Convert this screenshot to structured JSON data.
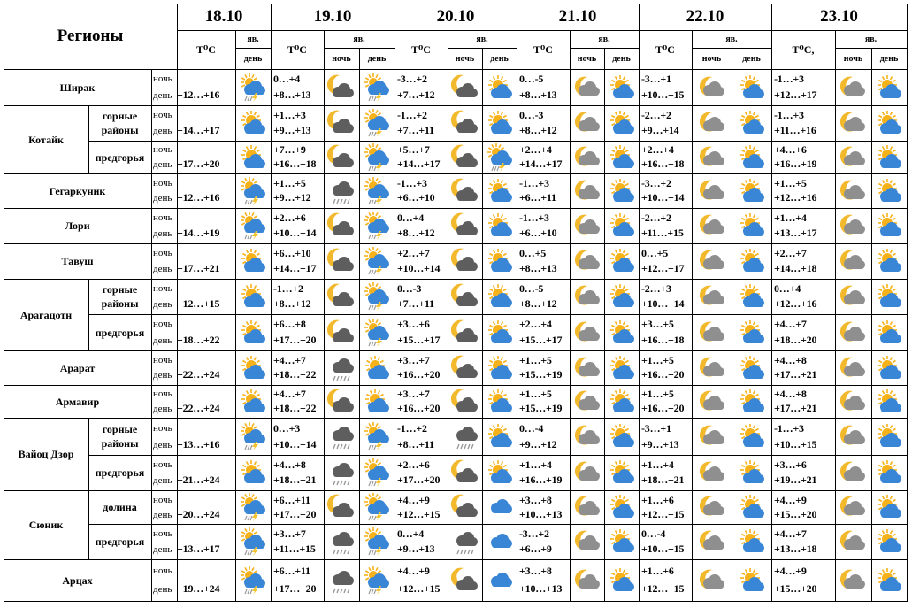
{
  "chart_data": {
    "type": "table",
    "title": "Регионы",
    "header": {
      "temp_label": "T⁰C",
      "temp_label_last": "T⁰C,",
      "phen_label": "яв.",
      "night_label": "ночь",
      "day_label": "день"
    },
    "dates": [
      "18.10",
      "19.10",
      "20.10",
      "21.10",
      "22.10",
      "23.10"
    ],
    "rows": [
      {
        "region": "Ширак",
        "sub": "",
        "t": [
          [
            "",
            "+12…+16"
          ],
          [
            "0…+4",
            "+8…+13"
          ],
          [
            "-3…+2",
            "+7…+12"
          ],
          [
            "0…-5",
            "+8…+13"
          ],
          [
            "-3…+1",
            "+10…+15"
          ],
          [
            "-1…+3",
            "+12…+17"
          ]
        ],
        "icons": [
          [
            "",
            "sun-rain-thunder"
          ],
          [
            "cloud-moon",
            "sun-rain-thunder"
          ],
          [
            "cloud-moon",
            "sun-cloud"
          ],
          [
            "moon",
            "sun-cloud"
          ],
          [
            "moon",
            "sun-cloud"
          ],
          [
            "moon",
            "sun-cloud"
          ]
        ]
      },
      {
        "region": "Котайк",
        "sub": "горные районы",
        "t": [
          [
            "",
            "+14…+17"
          ],
          [
            "+1…+3",
            "+9…+13"
          ],
          [
            "-1…+2",
            "+7…+11"
          ],
          [
            "0…-3",
            "+8…+12"
          ],
          [
            "-2…+2",
            "+9…+14"
          ],
          [
            "-1…+3",
            "+11…+16"
          ]
        ],
        "icons": [
          [
            "",
            "sun-cloud"
          ],
          [
            "cloud-moon",
            "sun-rain-thunder"
          ],
          [
            "cloud-moon",
            "sun-cloud"
          ],
          [
            "moon",
            "sun-cloud"
          ],
          [
            "moon",
            "sun-cloud"
          ],
          [
            "moon",
            "sun-cloud"
          ]
        ]
      },
      {
        "region": "",
        "sub": "предгорья",
        "t": [
          [
            "",
            "+17…+20"
          ],
          [
            "+7…+9",
            "+16…+18"
          ],
          [
            "+5…+7",
            "+14…+17"
          ],
          [
            "+2…+4",
            "+14…+17"
          ],
          [
            "+2…+4",
            "+16…+18"
          ],
          [
            "+4…+6",
            "+16…+19"
          ]
        ],
        "icons": [
          [
            "",
            "sun-cloud"
          ],
          [
            "cloud-moon",
            "sun-rain-thunder"
          ],
          [
            "cloud-moon",
            "sun-rain-thunder"
          ],
          [
            "moon",
            "sun-cloud"
          ],
          [
            "moon",
            "sun-cloud"
          ],
          [
            "moon",
            "sun-cloud"
          ]
        ]
      },
      {
        "region": "Гегаркуник",
        "sub": "",
        "t": [
          [
            "",
            "+12…+16"
          ],
          [
            "+1…+5",
            "+9…+12"
          ],
          [
            "-1…+3",
            "+6…+10"
          ],
          [
            "-1…+3",
            "+6…+11"
          ],
          [
            "-3…+2",
            "+10…+14"
          ],
          [
            "+1…+5",
            "+12…+16"
          ]
        ],
        "icons": [
          [
            "",
            "sun-rain-thunder"
          ],
          [
            "cloud-rain",
            "sun-rain-thunder"
          ],
          [
            "cloud-moon",
            "sun-cloud"
          ],
          [
            "moon",
            "sun-cloud"
          ],
          [
            "moon",
            "sun-cloud"
          ],
          [
            "moon",
            "sun-cloud"
          ]
        ]
      },
      {
        "region": "Лори",
        "sub": "",
        "t": [
          [
            "",
            "+14…+19"
          ],
          [
            "+2…+6",
            "+10…+14"
          ],
          [
            "0…+4",
            "+8…+12"
          ],
          [
            "-1…+3",
            "+6…+10"
          ],
          [
            "-2…+2",
            "+11…+15"
          ],
          [
            "+1…+4",
            "+13…+17"
          ]
        ],
        "icons": [
          [
            "",
            "sun-rain-thunder"
          ],
          [
            "cloud-moon",
            "sun-rain-thunder"
          ],
          [
            "cloud-moon",
            "sun-cloud"
          ],
          [
            "moon",
            "sun-cloud"
          ],
          [
            "moon",
            "sun-cloud"
          ],
          [
            "moon",
            "sun-cloud"
          ]
        ]
      },
      {
        "region": "Тавуш",
        "sub": "",
        "t": [
          [
            "",
            "+17…+21"
          ],
          [
            "+6…+10",
            "+14…+17"
          ],
          [
            "+2…+7",
            "+10…+14"
          ],
          [
            "0…+5",
            "+8…+13"
          ],
          [
            "0…+5",
            "+12…+17"
          ],
          [
            "+2…+7",
            "+14…+18"
          ]
        ],
        "icons": [
          [
            "",
            "sun-cloud"
          ],
          [
            "cloud-moon",
            "sun-rain-thunder"
          ],
          [
            "cloud-moon",
            "sun-cloud"
          ],
          [
            "moon",
            "sun-cloud"
          ],
          [
            "moon",
            "sun-cloud"
          ],
          [
            "moon",
            "sun-cloud"
          ]
        ]
      },
      {
        "region": "Арагацотн",
        "sub": "горные районы",
        "t": [
          [
            "",
            "+12…+15"
          ],
          [
            "-1…+2",
            "+8…+12"
          ],
          [
            "0…-3",
            "+7…+11"
          ],
          [
            "0…-5",
            "+8…+12"
          ],
          [
            "-2…+3",
            "+10…+14"
          ],
          [
            "0…+4",
            "+12…+16"
          ]
        ],
        "icons": [
          [
            "",
            "sun-cloud"
          ],
          [
            "cloud-moon",
            "sun-rain-thunder"
          ],
          [
            "cloud-moon",
            "sun-cloud"
          ],
          [
            "moon",
            "sun-cloud"
          ],
          [
            "moon",
            "sun-cloud"
          ],
          [
            "moon",
            "sun-cloud"
          ]
        ]
      },
      {
        "region": "",
        "sub": "предгорья",
        "t": [
          [
            "",
            "+18…+22"
          ],
          [
            "+6…+8",
            "+17…+20"
          ],
          [
            "+3…+6",
            "+15…+17"
          ],
          [
            "+2…+4",
            "+15…+17"
          ],
          [
            "+3…+5",
            "+16…+18"
          ],
          [
            "+4…+7",
            "+18…+20"
          ]
        ],
        "icons": [
          [
            "",
            "sun-cloud"
          ],
          [
            "cloud-moon",
            "sun-rain-thunder"
          ],
          [
            "cloud-moon",
            "sun-cloud"
          ],
          [
            "moon",
            "sun-cloud"
          ],
          [
            "moon",
            "sun-cloud"
          ],
          [
            "moon",
            "sun-cloud"
          ]
        ]
      },
      {
        "region": "Арарат",
        "sub": "",
        "t": [
          [
            "",
            "+22…+24"
          ],
          [
            "+4…+7",
            "+18…+22"
          ],
          [
            "+3…+7",
            "+16…+20"
          ],
          [
            "+1…+5",
            "+15…+19"
          ],
          [
            "+1…+5",
            "+16…+20"
          ],
          [
            "+4…+8",
            "+17…+21"
          ]
        ],
        "icons": [
          [
            "",
            "sun-cloud"
          ],
          [
            "cloud-rain",
            "sun-cloud"
          ],
          [
            "cloud-moon",
            "sun-cloud"
          ],
          [
            "moon",
            "sun-cloud"
          ],
          [
            "moon",
            "sun-cloud"
          ],
          [
            "moon",
            "sun-cloud"
          ]
        ]
      },
      {
        "region": "Армавир",
        "sub": "",
        "t": [
          [
            "",
            "+22…+24"
          ],
          [
            "+4…+7",
            "+18…+22"
          ],
          [
            "+3…+7",
            "+16…+20"
          ],
          [
            "+1…+5",
            "+15…+19"
          ],
          [
            "+1…+5",
            "+16…+20"
          ],
          [
            "+4…+8",
            "+17…+21"
          ]
        ],
        "icons": [
          [
            "",
            "sun-cloud"
          ],
          [
            "cloud-moon",
            "sun-cloud"
          ],
          [
            "cloud-moon",
            "sun-cloud"
          ],
          [
            "moon",
            "sun-cloud"
          ],
          [
            "moon",
            "sun-cloud"
          ],
          [
            "moon",
            "sun-cloud"
          ]
        ]
      },
      {
        "region": "Вайоц Дзор",
        "sub": "горные районы",
        "t": [
          [
            "",
            "+13…+16"
          ],
          [
            "0…+3",
            "+10…+14"
          ],
          [
            "-1…+2",
            "+8…+11"
          ],
          [
            "0…-4",
            "+9…+12"
          ],
          [
            "-3…+1",
            "+9…+13"
          ],
          [
            "-1…+3",
            "+10…+15"
          ]
        ],
        "icons": [
          [
            "",
            "sun-rain-thunder"
          ],
          [
            "cloud-rain",
            "sun-rain-thunder"
          ],
          [
            "cloud-rain",
            "sun-cloud"
          ],
          [
            "moon",
            "sun-cloud"
          ],
          [
            "moon",
            "sun-cloud"
          ],
          [
            "moon",
            "sun-cloud"
          ]
        ]
      },
      {
        "region": "",
        "sub": "предгорья",
        "t": [
          [
            "",
            "+21…+24"
          ],
          [
            "+4…+8",
            "+18…+21"
          ],
          [
            "+2…+6",
            "+17…+20"
          ],
          [
            "+1…+4",
            "+16…+19"
          ],
          [
            "+1…+4",
            "+18…+21"
          ],
          [
            "+3…+6",
            "+19…+21"
          ]
        ],
        "icons": [
          [
            "",
            "sun-cloud"
          ],
          [
            "cloud-rain",
            "sun-rain-thunder"
          ],
          [
            "cloud-moon",
            "sun-cloud"
          ],
          [
            "moon",
            "sun-cloud"
          ],
          [
            "moon",
            "sun-cloud"
          ],
          [
            "moon",
            "sun-cloud"
          ]
        ]
      },
      {
        "region": "Сюник",
        "sub": "долина",
        "t": [
          [
            "",
            "+20…+24"
          ],
          [
            "+6…+11",
            "+17…+20"
          ],
          [
            "+4…+9",
            "+12…+15"
          ],
          [
            "+3…+8",
            "+10…+13"
          ],
          [
            "+1…+6",
            "+12…+15"
          ],
          [
            "+4…+9",
            "+15…+20"
          ]
        ],
        "icons": [
          [
            "",
            "sun-rain-thunder"
          ],
          [
            "cloud-moon",
            "sun-rain-thunder"
          ],
          [
            "cloud-moon",
            "cloud"
          ],
          [
            "moon",
            "sun-cloud"
          ],
          [
            "moon",
            "sun-cloud"
          ],
          [
            "moon",
            "sun-cloud"
          ]
        ]
      },
      {
        "region": "",
        "sub": "предгорья",
        "t": [
          [
            "",
            "+13…+17"
          ],
          [
            "+3…+7",
            "+11…+15"
          ],
          [
            "0…+4",
            "+9…+13"
          ],
          [
            "-3…+2",
            "+6…+9"
          ],
          [
            "0…-4",
            "+10…+15"
          ],
          [
            "+4…+7",
            "+13…+18"
          ]
        ],
        "icons": [
          [
            "",
            "sun-rain-thunder"
          ],
          [
            "cloud-rain",
            "sun-rain-thunder"
          ],
          [
            "cloud-rain",
            "cloud"
          ],
          [
            "moon",
            "sun-cloud"
          ],
          [
            "moon",
            "sun-cloud"
          ],
          [
            "moon",
            "sun-cloud"
          ]
        ]
      },
      {
        "region": "Арцах",
        "sub": "",
        "t": [
          [
            "",
            "+19…+24"
          ],
          [
            "+6…+11",
            "+17…+20"
          ],
          [
            "+4…+9",
            "+12…+15"
          ],
          [
            "+3…+8",
            "+10…+13"
          ],
          [
            "+1…+6",
            "+12…+15"
          ],
          [
            "+4…+9",
            "+15…+20"
          ]
        ],
        "icons": [
          [
            "",
            "sun-rain-thunder"
          ],
          [
            "cloud-rain",
            "sun-rain-thunder"
          ],
          [
            "cloud-moon",
            "cloud"
          ],
          [
            "moon",
            "sun-cloud"
          ],
          [
            "moon",
            "sun-cloud"
          ],
          [
            "moon",
            "sun-cloud"
          ]
        ]
      }
    ]
  },
  "colors": {
    "line": "#000000",
    "cloud": "#8f8f8f",
    "cloud_dark": "#5e5e5e",
    "moon": "#f3b92c",
    "sun": "#f7b21a",
    "rain_cloud": "#3a86d6",
    "bolt": "#f4c430",
    "rain": "#9a9a9a"
  }
}
